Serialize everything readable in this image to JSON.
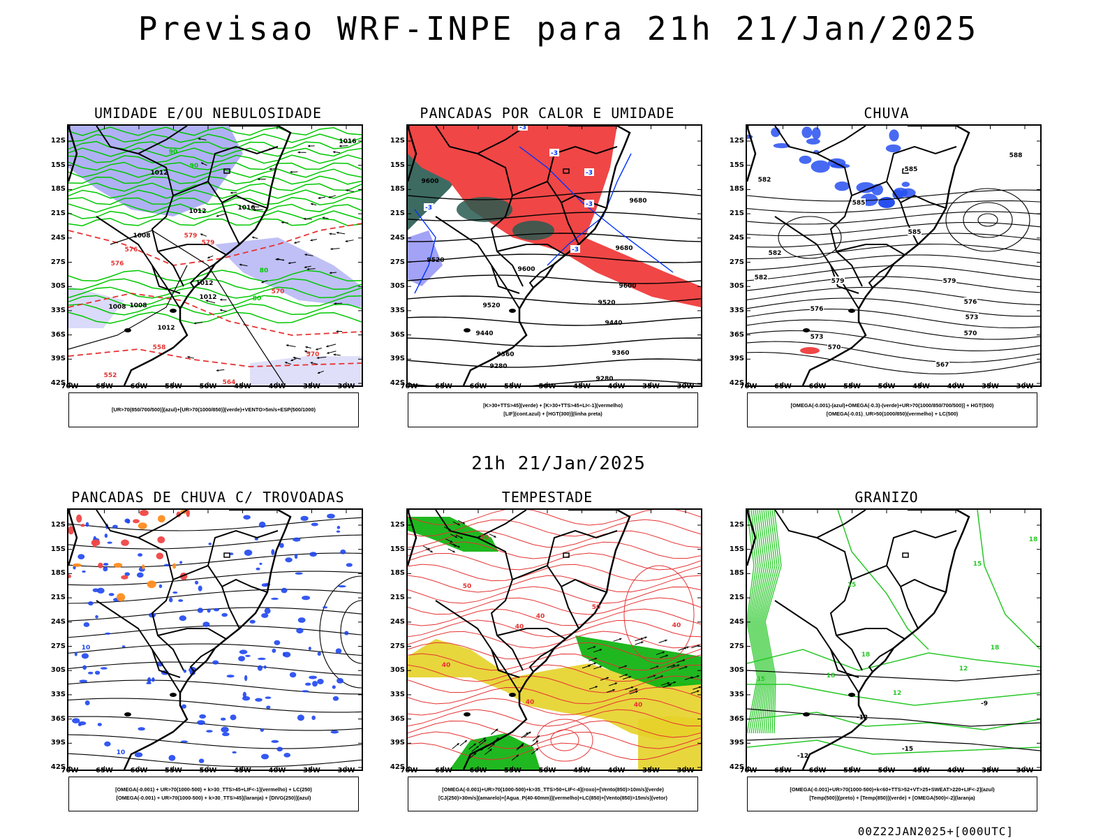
{
  "header": {
    "title": "Previsao WRF-INPE  para 21h 21/Jan/2025"
  },
  "middle_date": "21h 21/Jan/2025",
  "footer_stamp": "00Z22JAN2025+[000UTC]",
  "axes": {
    "lat_ticks": [
      "12S",
      "15S",
      "18S",
      "21S",
      "24S",
      "27S",
      "30S",
      "33S",
      "36S",
      "39S",
      "42S"
    ],
    "lon_ticks": [
      "70W",
      "65W",
      "60W",
      "55W",
      "50W",
      "45W",
      "40W",
      "35W",
      "30W"
    ]
  },
  "colors": {
    "humidity_blue": "#9696f0",
    "humidity_green": "#00c800",
    "contour_red": "#e63232",
    "convection_red": "#f04646",
    "convection_darkgreen": "#285a50",
    "lif_blue": "#0032ff",
    "storm_green": "#14b414",
    "storm_yellow": "#e6d228",
    "thunder_orange": "#ff8c1e",
    "hail_green": "#28c828"
  },
  "panels": [
    {
      "title": "UMIDADE E/OU NEBULOSIDADE",
      "legend": [
        "[UR>70(850/700/500)](azul)+[UR>70(1000/850)](verde)+VENTO>5m/s+ESP(500/1000)"
      ],
      "contour_labels": [
        "1016",
        "1012",
        "1012",
        "1008",
        "1008",
        "1012",
        "1012",
        "1012",
        "1016",
        "1008",
        "576",
        "579",
        "579",
        "576",
        "570",
        "564",
        "558",
        "552",
        "570",
        "90",
        "90",
        "80",
        "80"
      ]
    },
    {
      "title": "PANCADAS POR CALOR E UMIDADE",
      "legend": [
        "[K>30+TTS>45](verde) + [K>30+TTS>45+LI<-1](vermelho)",
        "[LIF](cont.azul) + [HGT(300)](linha preta)"
      ],
      "contour_labels": [
        "9600",
        "9680",
        "9680",
        "9600",
        "9600",
        "9520",
        "9520",
        "9520",
        "9440",
        "9440",
        "9360",
        "9360",
        "9280",
        "9280",
        "-3",
        "-3",
        "-3",
        "-3",
        "-3",
        "-3"
      ]
    },
    {
      "title": "CHUVA",
      "legend": [
        "[OMEGA(-0.001)-(azul)+OMEGA(-0.3)-(verde)+UR>70(1000/850/700/500)] + HGT(500)",
        "[OMEGA(-0.01)_UR>50(1000/850)(vermelho) + LC(500)"
      ],
      "contour_labels": [
        "588",
        "585",
        "585",
        "585",
        "582",
        "582",
        "582",
        "579",
        "579",
        "576",
        "576",
        "573",
        "573",
        "570",
        "570",
        "567"
      ]
    },
    {
      "title": "PANCADAS DE CHUVA C/ TROVOADAS",
      "legend": [
        "[OMEGA(-0.001) + UR>70(1000-500) + k>30_TTS>45+LIF<-1](vermelho) + LC(250)",
        "[OMEGA(-0.001) + UR>70(1000-500) + k>30_TTS>45](laranja) + [DIVG(250)](azul)"
      ],
      "contour_labels": [
        "10",
        "10"
      ]
    },
    {
      "title": "TEMPESTADE",
      "legend": [
        "[OMEGA(-0.001)+UR>70(1000-500)+k>35_TTS>50+LIF<-4](roxo)+[Vento(850)>10m/s](verde)",
        "[CJ(250)>30m/s](amarelo)+[Agua_P(40-60mm)](vermelho)+LC(850)+[Vento(850)>15m/s](vetor)"
      ],
      "contour_labels": [
        "50",
        "50",
        "40",
        "40",
        "40",
        "40",
        "40",
        "50",
        "40"
      ]
    },
    {
      "title": "GRANIZO",
      "legend": [
        "[OMEGA(-0.001)+UR>70(1000-500)+k<60+TTS>52+VT>25+SWEAT>220+LIF<-2](azul)",
        "[Temp(500)](preto) + [Temp(850)](verde) + [OMEGA(500)<-2](laranja)"
      ],
      "contour_labels": [
        "18",
        "18",
        "18",
        "18",
        "15",
        "15",
        "15",
        "12",
        "12",
        "-9",
        "-12",
        "-15",
        "-12"
      ]
    }
  ]
}
